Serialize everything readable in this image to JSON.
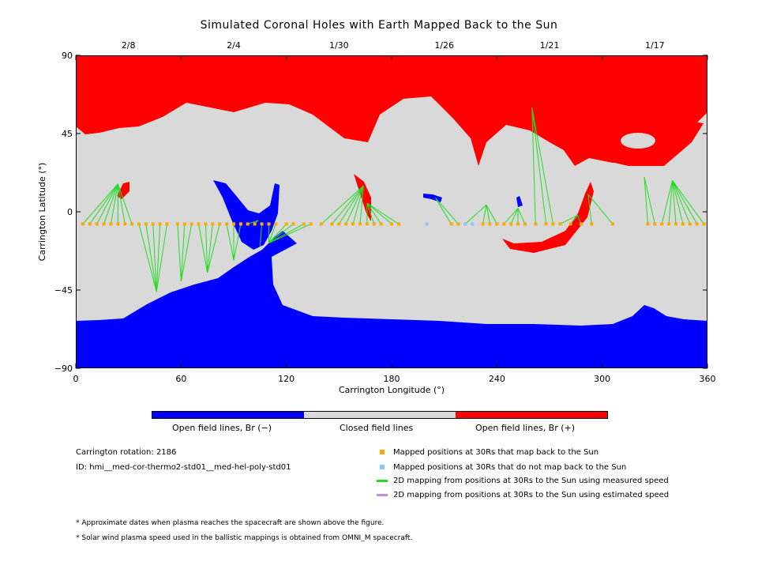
{
  "title": "Simulated Coronal Holes with Earth Mapped Back to the Sun",
  "chart_data": {
    "type": "scatter",
    "title": "Simulated Coronal Holes with Earth Mapped Back to the Sun",
    "xlabel": "Carrington Longitude (°)",
    "ylabel": "Carrington Latitude (°)",
    "xlim": [
      0,
      360
    ],
    "ylim": [
      -90,
      90
    ],
    "x_ticks": [
      "0",
      "60",
      "120",
      "180",
      "240",
      "300",
      "360"
    ],
    "y_ticks": [
      "90",
      "45",
      "0",
      "−45",
      "−90"
    ],
    "top_axis_dates": [
      {
        "label": "2/8",
        "lon": 30
      },
      {
        "label": "2/4",
        "lon": 90
      },
      {
        "label": "1/30",
        "lon": 150
      },
      {
        "label": "1/26",
        "lon": 210
      },
      {
        "label": "1/21",
        "lon": 270
      },
      {
        "label": "1/17",
        "lon": 330
      }
    ],
    "colors": {
      "open_negative": "#0000ff",
      "closed": "#d9d9d9",
      "open_positive": "#ff0000",
      "mapped": "#ffaa00",
      "unmapped": "#88c8ff",
      "measured_line": "#22dd22",
      "estimated_line": "#c090e0"
    },
    "mapped_lon_at_30Rs": [
      4,
      8,
      12,
      16,
      20,
      24,
      28,
      32,
      36,
      40,
      44,
      48,
      52,
      58,
      62,
      66,
      70,
      74,
      78,
      82,
      86,
      90,
      94,
      98,
      102,
      106,
      110,
      114,
      120,
      124,
      130,
      134,
      140,
      146,
      150,
      154,
      158,
      162,
      166,
      170,
      174,
      180,
      184,
      214,
      218,
      222,
      232,
      236,
      240,
      244,
      248,
      252,
      256,
      262,
      268,
      272,
      276,
      282,
      288,
      294,
      306,
      326,
      330,
      334,
      338,
      342,
      346,
      350,
      354,
      358
    ],
    "unmapped_lon_at_30Rs": [
      200,
      222,
      226
    ],
    "mapped_lat_at_30Rs": -7,
    "footpoints": [
      {
        "lon": 24,
        "lat": 16
      },
      {
        "lon": 46,
        "lat": -46
      },
      {
        "lon": 60,
        "lat": -40
      },
      {
        "lon": 75,
        "lat": -35
      },
      {
        "lon": 90,
        "lat": -28
      },
      {
        "lon": 105,
        "lat": -20
      },
      {
        "lon": 110,
        "lat": -18
      },
      {
        "lon": 104,
        "lat": -5
      },
      {
        "lon": 166,
        "lat": 5
      },
      {
        "lon": 164,
        "lat": 15
      },
      {
        "lon": 205,
        "lat": 8
      },
      {
        "lon": 234,
        "lat": 4
      },
      {
        "lon": 252,
        "lat": 2
      },
      {
        "lon": 260,
        "lat": 60
      },
      {
        "lon": 286,
        "lat": -2
      },
      {
        "lon": 292,
        "lat": 10
      },
      {
        "lon": 324,
        "lat": 20
      },
      {
        "lon": 340,
        "lat": 18
      }
    ]
  },
  "colorbar": {
    "neg_label": "Open field lines, Br (−)",
    "closed_label": "Closed field lines",
    "pos_label": "Open field lines, Br (+)"
  },
  "info": {
    "rotation": "Carrington rotation: 2186",
    "id": "ID: hmi__med-cor-thermo2-std01__med-hel-poly-std01"
  },
  "legend": {
    "mapped": "Mapped positions at 30Rs that map back to the Sun",
    "unmapped": "Mapped positions at 30Rs that do not map back to the Sun",
    "measured": "2D mapping from positions at 30Rs to the Sun using measured speed",
    "estimated": "2D mapping from positions at 30Rs to the Sun using estimated speed"
  },
  "notes": {
    "note1": "* Approximate dates when plasma reaches the spacecraft are shown above the figure.",
    "note2": "* Solar wind plasma speed used in the ballistic mappings is obtained from OMNI_M spacecraft."
  }
}
